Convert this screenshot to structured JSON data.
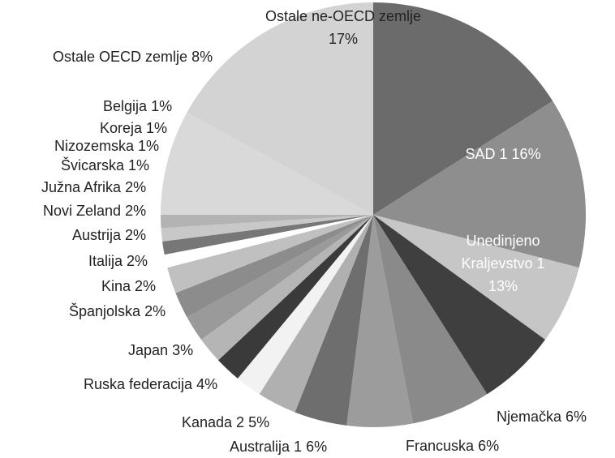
{
  "chart_data": {
    "type": "pie",
    "categories": [
      "SAD 1",
      "Unedinjeno Kraljevstvo 1",
      "Njemačka",
      "Francuska",
      "Australija 1",
      "Kanada 2",
      "Ruska federacija",
      "Japan",
      "Španjolska",
      "Kina",
      "Italija",
      "Austrija",
      "Novi Zeland",
      "Južna Afrika",
      "Švicarska",
      "Nizozemska",
      "Koreja",
      "Belgija",
      "Ostale OECD zemlje",
      "Ostale ne-OECD zemlje"
    ],
    "values": [
      16,
      13,
      6,
      6,
      6,
      5,
      4,
      3,
      2,
      2,
      2,
      2,
      2,
      2,
      1,
      1,
      1,
      1,
      8,
      17
    ],
    "value_labels": [
      "16%",
      "13%",
      "6%",
      "6%",
      "6%",
      "5%",
      "4%",
      "3%",
      "2%",
      "2%",
      "2%",
      "2%",
      "2%",
      "2%",
      "1%",
      "1%",
      "1%",
      "1%",
      "8%",
      "17%"
    ],
    "colors": [
      "#6b6b6b",
      "#8e8e8e",
      "#c6c6c6",
      "#3f3f3f",
      "#8a8a8a",
      "#9c9c9c",
      "#6e6e6e",
      "#b0b0b0",
      "#f2f2f2",
      "#3a3a3a",
      "#b5b5b5",
      "#9a9a9a",
      "#8c8c8c",
      "#c0c0c0",
      "#ffffff",
      "#777777",
      "#c8c8c8",
      "#b3b3b3",
      "#d9d9d9",
      "#d3d3d3"
    ]
  }
}
